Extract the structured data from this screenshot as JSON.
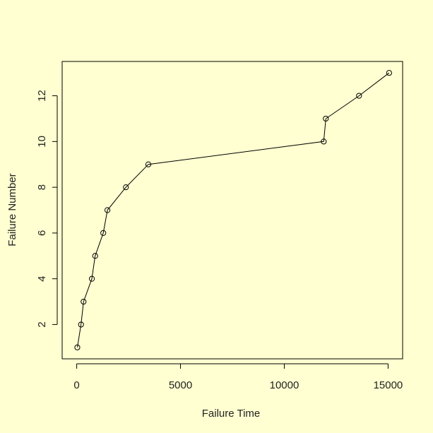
{
  "chart_data": {
    "type": "line",
    "markers": "open-circle",
    "xlabel": "Failure Time",
    "ylabel": "Failure Number",
    "xlim": [
      -700,
      15700
    ],
    "ylim": [
      0.5,
      13.5
    ],
    "xticks": [
      0,
      5000,
      10000,
      15000
    ],
    "xtick_labels": [
      "0",
      "5000",
      "10000",
      "15000"
    ],
    "yticks": [
      2,
      4,
      6,
      8,
      10,
      12
    ],
    "ytick_labels": [
      "2",
      "4",
      "6",
      "8",
      "10",
      "12"
    ],
    "grid": false,
    "series": [
      {
        "x": [
          30,
          210,
          330,
          730,
          890,
          1280,
          1480,
          2370,
          3450,
          11900,
          12000,
          13600,
          15050
        ],
        "y": [
          1,
          2,
          3,
          4,
          5,
          6,
          7,
          8,
          9,
          10,
          11,
          12,
          13
        ]
      }
    ],
    "colors": {
      "background": "#ffffd1",
      "line": "#000000",
      "axis": "#000000"
    }
  }
}
